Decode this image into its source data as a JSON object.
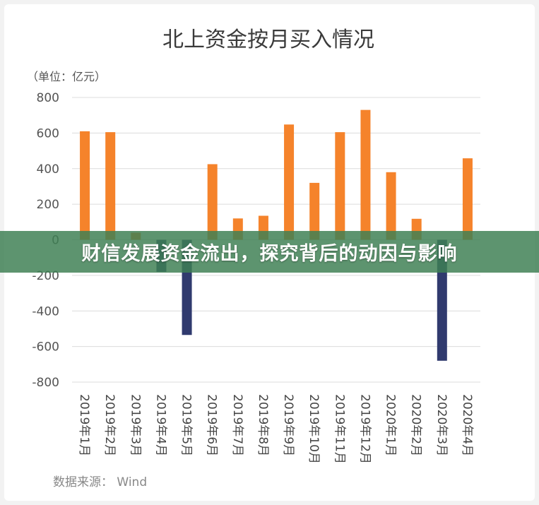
{
  "banner_text": "财信发展资金流出，探究背后的动因与影响",
  "source_text": "数据来源： Wind",
  "colors": {
    "positive": "#f5832b",
    "negative": "#303a6e",
    "banner": "#3e8054",
    "grid": "#dcdcdc"
  },
  "chart_data": {
    "type": "bar",
    "title": "北上资金按月买入情况",
    "unit_label": "（单位：亿元）",
    "categories": [
      "2019年1月",
      "2019年2月",
      "2019年3月",
      "2019年4月",
      "2019年5月",
      "2019年6月",
      "2019年7月",
      "2019年8月",
      "2019年9月",
      "2019年10月",
      "2019年11月",
      "2019年12月",
      "2020年1月",
      "2020年2月",
      "2020年3月",
      "2020年4月"
    ],
    "values": [
      610,
      605,
      40,
      -180,
      -535,
      425,
      120,
      135,
      648,
      320,
      605,
      730,
      380,
      118,
      -680,
      458
    ],
    "ylim": [
      -800,
      800
    ],
    "yticks": [
      800,
      600,
      400,
      200,
      0,
      -200,
      -400,
      -600,
      -800
    ],
    "grid": true,
    "legend": "none"
  }
}
